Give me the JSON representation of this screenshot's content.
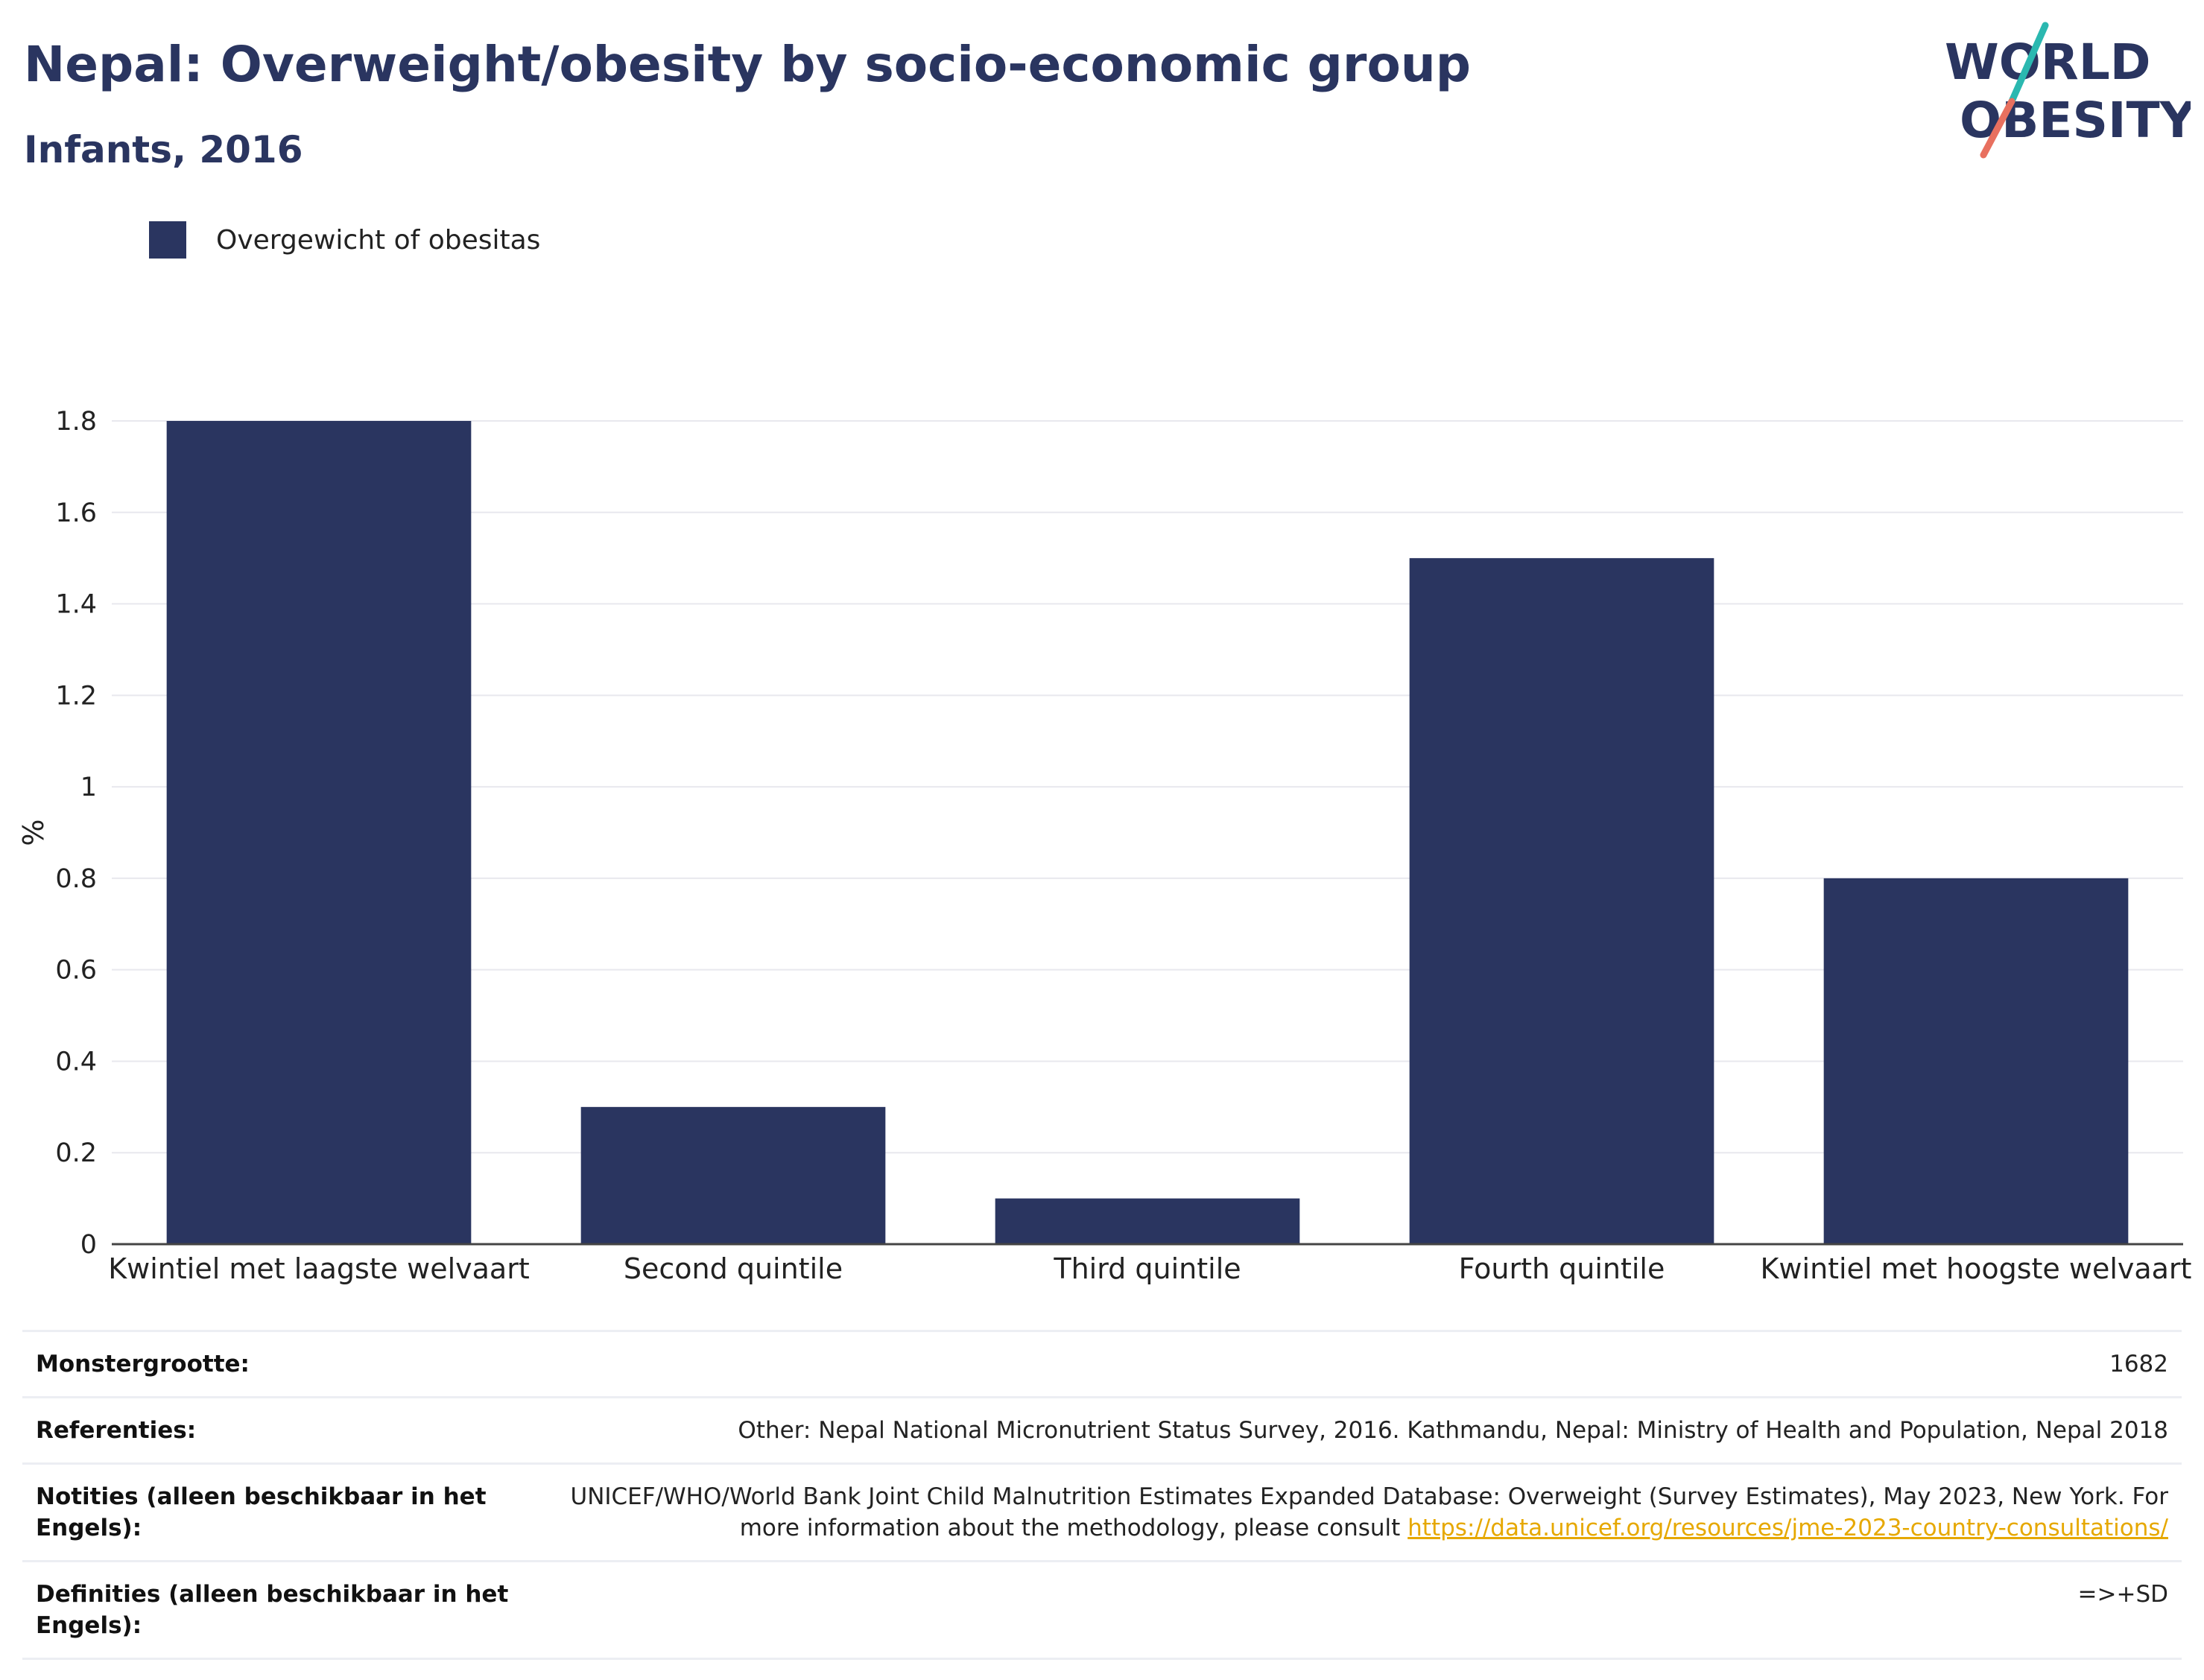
{
  "header": {
    "title": "Nepal: Overweight/obesity by socio-economic group",
    "subtitle": "Infants, 2016"
  },
  "logo": {
    "line1": "WORLD",
    "line2": "OBESITY",
    "accent_teal": "#2bb8b0",
    "accent_coral": "#e8705f"
  },
  "colors": {
    "bar": "#2a3560",
    "grid": "#e8e8ee",
    "axis": "#444444",
    "link": "#e6a800"
  },
  "chart_data": {
    "type": "bar",
    "categories": [
      "Kwintiel met laagste welvaart",
      "Second quintile",
      "Third quintile",
      "Fourth quintile",
      "Kwintiel met hoogste welvaart"
    ],
    "series": [
      {
        "name": "Overgewicht of obesitas",
        "values": [
          1.8,
          0.3,
          0.1,
          1.5,
          0.8
        ]
      }
    ],
    "ylabel": "%",
    "ylim": [
      0,
      1.8
    ],
    "yticks": [
      0,
      0.2,
      0.4,
      0.6,
      0.8,
      1,
      1.2,
      1.4,
      1.6,
      1.8
    ],
    "grid": true,
    "legend_position": "top-left"
  },
  "info": {
    "rows": [
      {
        "label": "Monstergrootte:",
        "value": "1682"
      },
      {
        "label": "Referenties:",
        "value": "Other: Nepal National Micronutrient Status Survey, 2016. Kathmandu, Nepal: Ministry of Health and Population, Nepal 2018"
      },
      {
        "label": "Notities (alleen beschikbaar in het Engels):",
        "value": "UNICEF/WHO/World Bank Joint Child Malnutrition Estimates Expanded Database: Overweight (Survey Estimates), May 2023, New York. For more information about the methodology, please consult ",
        "link": "https://data.unicef.org/resources/jme-2023-country-consultations/"
      },
      {
        "label": "Definities (alleen beschikbaar in het Engels):",
        "value": "=>+SD"
      }
    ]
  }
}
